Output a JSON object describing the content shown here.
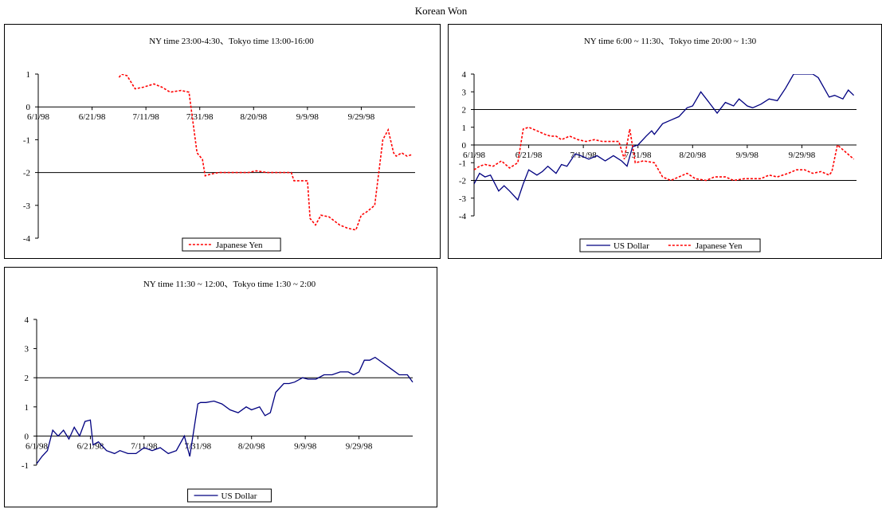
{
  "figure_title": "Korean Won",
  "chart_data": [
    {
      "type": "line",
      "title": "NY time 23:00-4:30、Tokyo time 13:00-16:00",
      "xlabel": "",
      "ylabel": "",
      "ylim": [
        -4,
        1
      ],
      "yticks": [
        -4,
        -3,
        -2,
        -1,
        0,
        1
      ],
      "x_start": "6/1/98",
      "x_end": "10/19/98",
      "x_tick_labels": [
        "6/1/98",
        "6/21/98",
        "7/11/98",
        "7/31/98",
        "8/20/98",
        "9/9/98",
        "9/29/98"
      ],
      "reference_line": -2,
      "legend_placement": "bottom-center",
      "series": [
        {
          "name": "Japanese Yen",
          "color": "#ff0000",
          "style": "dashed",
          "x": [
            "7/1/98",
            "7/2/98",
            "7/4/98",
            "7/7/98",
            "7/10/98",
            "7/14/98",
            "7/17/98",
            "7/20/98",
            "7/24/98",
            "7/27/98",
            "7/30/98",
            "8/1/98",
            "8/2/98",
            "8/4/98",
            "8/7/98",
            "8/11/98",
            "8/14/98",
            "8/18/98",
            "8/21/98",
            "8/25/98",
            "8/28/98",
            "9/1/98",
            "9/3/98",
            "9/4/98",
            "9/7/98",
            "9/9/98",
            "9/10/98",
            "9/12/98",
            "9/14/98",
            "9/17/98",
            "9/21/98",
            "9/24/98",
            "9/27/98",
            "9/29/98",
            "10/1/98",
            "10/4/98",
            "10/7/98",
            "10/9/98",
            "10/11/98",
            "10/12/98",
            "10/14/98",
            "10/16/98",
            "10/18/98"
          ],
          "values": [
            0.9,
            1.0,
            0.95,
            0.55,
            0.6,
            0.7,
            0.6,
            0.45,
            0.5,
            0.45,
            -1.4,
            -1.6,
            -2.1,
            -2.05,
            -2.0,
            -2.0,
            -2.0,
            -2.0,
            -1.95,
            -2.0,
            -2.0,
            -2.0,
            -2.0,
            -2.25,
            -2.25,
            -2.25,
            -3.4,
            -3.6,
            -3.3,
            -3.35,
            -3.6,
            -3.7,
            -3.75,
            -3.3,
            -3.2,
            -3.0,
            -1.0,
            -0.7,
            -1.4,
            -1.5,
            -1.4,
            -1.5,
            -1.45
          ]
        }
      ]
    },
    {
      "type": "line",
      "title": "NY time 6:00 ~ 11:30、Tokyo time 20:00 ~ 1:30",
      "xlabel": "",
      "ylabel": "",
      "ylim": [
        -4,
        4
      ],
      "yticks": [
        -4,
        -3,
        -2,
        -1,
        0,
        1,
        2,
        3,
        4
      ],
      "x_start": "6/1/98",
      "x_end": "10/19/98",
      "x_tick_labels": [
        "6/1/98",
        "6/21/98",
        "7/11/98",
        "7/31/98",
        "8/20/98",
        "9/9/98",
        "9/29/98"
      ],
      "reference_lines": [
        2,
        -2
      ],
      "legend_placement": "bottom-center",
      "series": [
        {
          "name": "US Dollar",
          "color": "#000080",
          "style": "solid",
          "x": [
            "6/1/98",
            "6/3/98",
            "6/5/98",
            "6/7/98",
            "6/10/98",
            "6/12/98",
            "6/14/98",
            "6/17/98",
            "6/19/98",
            "6/21/98",
            "6/24/98",
            "6/26/98",
            "6/28/98",
            "7/1/98",
            "7/3/98",
            "7/5/98",
            "7/8/98",
            "7/10/98",
            "7/13/98",
            "7/16/98",
            "7/19/98",
            "7/22/98",
            "7/25/98",
            "7/27/98",
            "7/29/98",
            "7/31/98",
            "8/3/98",
            "8/5/98",
            "8/6/98",
            "8/9/98",
            "8/12/98",
            "8/15/98",
            "8/18/98",
            "8/20/98",
            "8/23/98",
            "8/26/98",
            "8/29/98",
            "9/1/98",
            "9/4/98",
            "9/6/98",
            "9/9/98",
            "9/11/98",
            "9/14/98",
            "9/17/98",
            "9/20/98",
            "9/23/98",
            "9/26/98",
            "9/29/98",
            "10/2/98",
            "10/3/98",
            "10/5/98",
            "10/9/98",
            "10/11/98",
            "10/14/98",
            "10/16/98",
            "10/18/98"
          ],
          "values": [
            -2.2,
            -1.6,
            -1.8,
            -1.7,
            -2.6,
            -2.3,
            -2.6,
            -3.1,
            -2.2,
            -1.4,
            -1.7,
            -1.5,
            -1.2,
            -1.6,
            -1.1,
            -1.2,
            -0.5,
            -0.6,
            -0.8,
            -0.6,
            -0.9,
            -0.6,
            -0.9,
            -1.2,
            -0.1,
            0.0,
            0.5,
            0.8,
            0.6,
            1.2,
            1.4,
            1.6,
            2.1,
            2.2,
            3.0,
            2.4,
            1.8,
            2.4,
            2.2,
            2.6,
            2.2,
            2.1,
            2.3,
            2.6,
            2.5,
            3.2,
            4.0,
            4.0,
            4.0,
            4.0,
            3.8,
            2.7,
            2.8,
            2.6,
            3.1,
            2.8
          ]
        },
        {
          "name": "Japanese Yen",
          "color": "#ff0000",
          "style": "dashed",
          "x": [
            "6/1/98",
            "6/3/98",
            "6/5/98",
            "6/8/98",
            "6/11/98",
            "6/14/98",
            "6/17/98",
            "6/19/98",
            "6/21/98",
            "6/24/98",
            "6/27/98",
            "6/29/98",
            "7/1/98",
            "7/3/98",
            "7/6/98",
            "7/9/98",
            "7/12/98",
            "7/15/98",
            "7/18/98",
            "7/21/98",
            "7/24/98",
            "7/26/98",
            "7/28/98",
            "7/30/98",
            "8/2/98",
            "8/6/98",
            "8/9/98",
            "8/12/98",
            "8/15/98",
            "8/18/98",
            "8/21/98",
            "8/25/98",
            "8/28/98",
            "9/1/98",
            "9/4/98",
            "9/8/98",
            "9/11/98",
            "9/14/98",
            "9/17/98",
            "9/20/98",
            "9/24/98",
            "9/27/98",
            "9/30/98",
            "10/3/98",
            "10/6/98",
            "10/9/98",
            "10/10/98",
            "10/12/98",
            "10/15/98",
            "10/18/98"
          ],
          "values": [
            -1.4,
            -1.2,
            -1.1,
            -1.2,
            -0.9,
            -1.3,
            -1.0,
            0.9,
            1.0,
            0.8,
            0.6,
            0.5,
            0.5,
            0.3,
            0.5,
            0.3,
            0.2,
            0.3,
            0.2,
            0.2,
            0.2,
            -0.8,
            0.9,
            -1.0,
            -0.9,
            -1.0,
            -1.8,
            -2.0,
            -1.8,
            -1.6,
            -1.9,
            -2.0,
            -1.8,
            -1.8,
            -2.0,
            -1.9,
            -1.9,
            -1.9,
            -1.7,
            -1.8,
            -1.6,
            -1.4,
            -1.4,
            -1.6,
            -1.5,
            -1.7,
            -1.5,
            0.0,
            -0.4,
            -0.8
          ]
        }
      ]
    },
    {
      "type": "line",
      "title": "NY time 11:30 ~ 12:00、Tokyo time 1:30 ~ 2:00",
      "xlabel": "",
      "ylabel": "",
      "ylim": [
        -1,
        4
      ],
      "yticks": [
        -1,
        0,
        1,
        2,
        3,
        4
      ],
      "x_start": "6/1/98",
      "x_end": "10/19/98",
      "x_tick_labels": [
        "6/1/98",
        "6/21/98",
        "7/11/98",
        "7/31/98",
        "8/20/98",
        "9/9/98",
        "9/29/98"
      ],
      "reference_line": 2,
      "legend_placement": "bottom-center",
      "series": [
        {
          "name": "US Dollar",
          "color": "#000080",
          "style": "solid",
          "x": [
            "6/1/98",
            "6/3/98",
            "6/5/98",
            "6/7/98",
            "6/9/98",
            "6/11/98",
            "6/13/98",
            "6/15/98",
            "6/17/98",
            "6/19/98",
            "6/21/98",
            "6/22/98",
            "6/24/98",
            "6/27/98",
            "6/30/98",
            "7/2/98",
            "7/5/98",
            "7/8/98",
            "7/11/98",
            "7/14/98",
            "7/17/98",
            "7/20/98",
            "7/23/98",
            "7/26/98",
            "7/28/98",
            "7/31/98",
            "8/1/98",
            "8/3/98",
            "8/6/98",
            "8/9/98",
            "8/12/98",
            "8/15/98",
            "8/18/98",
            "8/20/98",
            "8/23/98",
            "8/25/98",
            "8/27/98",
            "8/29/98",
            "9/1/98",
            "9/3/98",
            "9/5/98",
            "9/8/98",
            "9/10/98",
            "9/13/98",
            "9/16/98",
            "9/19/98",
            "9/22/98",
            "9/25/98",
            "9/27/98",
            "9/29/98",
            "10/1/98",
            "10/3/98",
            "10/5/98",
            "10/8/98",
            "10/11/98",
            "10/14/98",
            "10/17/98",
            "10/19/98"
          ],
          "values": [
            -0.95,
            -0.7,
            -0.5,
            0.2,
            0.0,
            0.2,
            -0.1,
            0.3,
            0.0,
            0.5,
            0.55,
            -0.3,
            -0.2,
            -0.5,
            -0.6,
            -0.5,
            -0.6,
            -0.6,
            -0.4,
            -0.5,
            -0.4,
            -0.6,
            -0.5,
            0.0,
            -0.7,
            1.1,
            1.15,
            1.15,
            1.2,
            1.1,
            0.9,
            0.8,
            1.0,
            0.9,
            1.0,
            0.7,
            0.8,
            1.5,
            1.8,
            1.8,
            1.85,
            2.0,
            1.95,
            1.95,
            2.1,
            2.1,
            2.2,
            2.2,
            2.1,
            2.2,
            2.6,
            2.6,
            2.7,
            2.5,
            2.3,
            2.1,
            2.1,
            1.85
          ]
        }
      ]
    }
  ]
}
